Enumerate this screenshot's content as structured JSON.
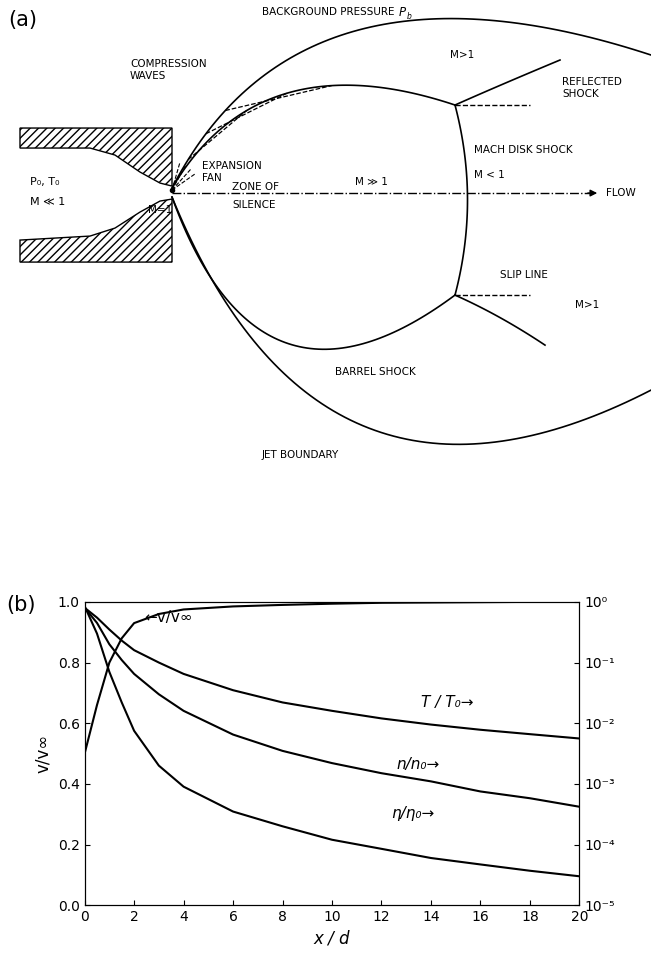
{
  "panel_a": {
    "panel_label": "(a)",
    "background": {
      "text": "BACKGROUND PRESSURE",
      "symbol": "P",
      "subscript": "b"
    },
    "labels": {
      "compression_waves": "COMPRESSION\nWAVES",
      "upper_region": "M>1",
      "reflected_shock": "REFLECTED\nSHOCK",
      "mach_disk": "MACH DISK SHOCK",
      "behind_disk": "M < 1",
      "expansion_fan": "EXPANSION\nFAN",
      "reservoir_state": "P₀, T₀",
      "reservoir_mach": "M ≪ 1",
      "exit_mach": "M=1",
      "zone": "ZONE OF\nSILENCE",
      "zone_mach": "M ≫ 1",
      "flow": "FLOW",
      "slip_line": "SLIP LINE",
      "lower_region": "M>1",
      "barrel_shock": "BARREL SHOCK",
      "jet_boundary": "JET BOUNDARY"
    }
  },
  "chart_data": {
    "type": "line",
    "panel_label": "(b)",
    "x_label": "x / d",
    "y_label": "v/v∞",
    "x": [
      0,
      0.5,
      1,
      1.5,
      2,
      3,
      4,
      6,
      8,
      10,
      12,
      14,
      16,
      18,
      20
    ],
    "xlim": [
      0,
      20
    ],
    "xticks": [
      0,
      2,
      4,
      6,
      8,
      10,
      12,
      14,
      16,
      18,
      20
    ],
    "ylim": [
      0.0,
      1.0
    ],
    "yticks": [
      0.0,
      0.2,
      0.4,
      0.6,
      0.8,
      1.0
    ],
    "y2lim": [
      1e-05,
      1
    ],
    "y2ticks": [
      {
        "value": 1,
        "label": "10⁰"
      },
      {
        "value": 0.1,
        "label": "10⁻¹"
      },
      {
        "value": 0.01,
        "label": "10⁻²"
      },
      {
        "value": 0.001,
        "label": "10⁻³"
      },
      {
        "value": 0.0001,
        "label": "10⁻⁴"
      },
      {
        "value": 1e-05,
        "label": "10⁻⁵"
      }
    ],
    "log": "y2",
    "series": [
      {
        "name": "←v/v∞",
        "axis": "y",
        "color": "#000000",
        "values": [
          0.5,
          0.66,
          0.8,
          0.88,
          0.93,
          0.96,
          0.975,
          0.985,
          0.99,
          0.994,
          0.997,
          0.998,
          0.999,
          1.0,
          1.0
        ]
      },
      {
        "name": "T / T₀→",
        "axis": "y2",
        "color": "#000000",
        "values": [
          0.8,
          0.55,
          0.35,
          0.23,
          0.16,
          0.1,
          0.065,
          0.035,
          0.022,
          0.016,
          0.012,
          0.0095,
          0.0078,
          0.0066,
          0.0056
        ]
      },
      {
        "name": "n/n₀→",
        "axis": "y2",
        "color": "#000000",
        "values": [
          0.8,
          0.45,
          0.2,
          0.11,
          0.065,
          0.03,
          0.016,
          0.0065,
          0.0035,
          0.0022,
          0.0015,
          0.0011,
          0.00075,
          0.00058,
          0.00042
        ]
      },
      {
        "name": "η/η₀→",
        "axis": "y2",
        "color": "#000000",
        "values": [
          0.85,
          0.3,
          0.07,
          0.022,
          0.0075,
          0.002,
          0.0009,
          0.00035,
          0.0002,
          0.00012,
          8.5e-05,
          6e-05,
          4.7e-05,
          3.7e-05,
          3e-05
        ]
      }
    ]
  }
}
